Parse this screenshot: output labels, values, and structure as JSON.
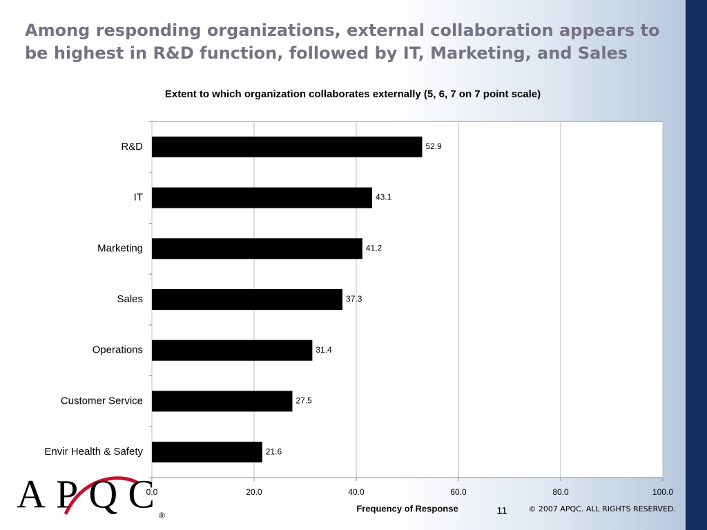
{
  "slide": {
    "title": "Among responding organizations, external collaboration appears to be highest in R&D function, followed by IT, Marketing, and Sales",
    "logo": "APQC",
    "logo_mark": "®",
    "page_number": "11",
    "copyright": "© 2007 APQC.  ALL RIGHTS RESERVED."
  },
  "chart_data": {
    "type": "bar",
    "orientation": "horizontal",
    "title": "Extent to which organization collaborates externally (5, 6, 7 on 7 point scale)",
    "x_label": "Frequency of Response",
    "categories": [
      "R&D",
      "IT",
      "Marketing",
      "Sales",
      "Operations",
      "Customer Service",
      "Envir Health & Safety"
    ],
    "values": [
      52.9,
      43.1,
      41.2,
      37.3,
      31.4,
      27.5,
      21.6
    ],
    "color": "#000000",
    "xlim": [
      0,
      100
    ],
    "xticks": [
      {
        "value": 0,
        "label": "0.0"
      },
      {
        "value": 20,
        "label": "20.0"
      },
      {
        "value": 40,
        "label": "40.0"
      },
      {
        "value": 60,
        "label": "60.0"
      },
      {
        "value": 80,
        "label": "80.0"
      },
      {
        "value": 100,
        "label": "100.0"
      }
    ],
    "grid": true
  }
}
